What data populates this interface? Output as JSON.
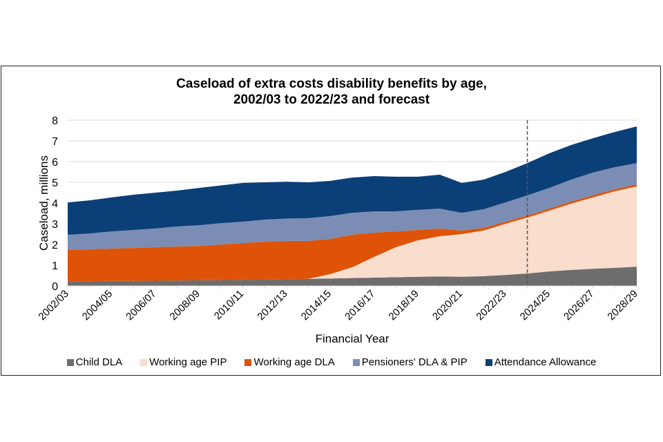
{
  "chart_data": {
    "type": "area",
    "stacked": true,
    "title": "Caseload of extra costs disability benefits by age,",
    "title_line2": "2002/03 to 2022/23 and forecast",
    "xlabel": "Financial Year",
    "ylabel": "Caseload, millions",
    "ylim": [
      0,
      8
    ],
    "yticks": [
      0,
      1,
      2,
      3,
      4,
      5,
      6,
      7,
      8
    ],
    "grid": true,
    "legend_position": "bottom",
    "forecast_marker": {
      "category": "2023/24",
      "style": "dashed"
    },
    "categories": [
      "2002/03",
      "2003/04",
      "2004/05",
      "2005/06",
      "2006/07",
      "2007/08",
      "2008/09",
      "2009/10",
      "2010/11",
      "2011/12",
      "2012/13",
      "2013/14",
      "2014/15",
      "2015/16",
      "2016/17",
      "2017/18",
      "2018/19",
      "2019/20",
      "2020/21",
      "2021/22",
      "2022/23",
      "2023/24",
      "2024/25",
      "2025/26",
      "2026/27",
      "2027/28",
      "2028/29"
    ],
    "tick_labels": [
      "2002/03",
      "2004/05",
      "2006/07",
      "2008/09",
      "2010/11",
      "2012/13",
      "2014/15",
      "2016/17",
      "2018/19",
      "2020/21",
      "2022/23",
      "2024/25",
      "2026/27",
      "2028/29"
    ],
    "series": [
      {
        "name": "Child DLA",
        "color": "#6d6d6d",
        "values": [
          0.22,
          0.23,
          0.24,
          0.24,
          0.25,
          0.26,
          0.27,
          0.28,
          0.29,
          0.3,
          0.32,
          0.34,
          0.36,
          0.38,
          0.4,
          0.42,
          0.44,
          0.46,
          0.44,
          0.47,
          0.53,
          0.6,
          0.7,
          0.77,
          0.83,
          0.87,
          0.93
        ]
      },
      {
        "name": "Working age PIP",
        "color": "#f9ddcd",
        "values": [
          0,
          0,
          0,
          0,
          0,
          0,
          0,
          0,
          0,
          0,
          0,
          0,
          0.21,
          0.52,
          1.0,
          1.45,
          1.76,
          1.94,
          2.06,
          2.2,
          2.47,
          2.7,
          2.93,
          3.2,
          3.44,
          3.7,
          3.87
        ]
      },
      {
        "name": "Working age DLA",
        "color": "#df5309",
        "values": [
          1.51,
          1.54,
          1.56,
          1.59,
          1.62,
          1.64,
          1.66,
          1.72,
          1.78,
          1.83,
          1.85,
          1.83,
          1.7,
          1.57,
          1.17,
          0.76,
          0.5,
          0.37,
          0.17,
          0.13,
          0.1,
          0.1,
          0.1,
          0.1,
          0.1,
          0.1,
          0.1
        ]
      },
      {
        "name": "Pensioners' DLA & PIP",
        "color": "#7b8db4",
        "values": [
          0.74,
          0.76,
          0.83,
          0.87,
          0.9,
          0.97,
          1.0,
          1.03,
          1.03,
          1.07,
          1.08,
          1.1,
          1.1,
          1.06,
          1.03,
          0.97,
          0.97,
          0.96,
          0.86,
          0.9,
          0.93,
          0.97,
          1.0,
          1.06,
          1.1,
          1.06,
          1.03
        ]
      },
      {
        "name": "Attendance Allowance",
        "color": "#0b3f77",
        "values": [
          1.56,
          1.6,
          1.64,
          1.7,
          1.73,
          1.73,
          1.8,
          1.82,
          1.87,
          1.8,
          1.78,
          1.73,
          1.7,
          1.7,
          1.7,
          1.67,
          1.6,
          1.64,
          1.44,
          1.43,
          1.47,
          1.56,
          1.67,
          1.67,
          1.66,
          1.7,
          1.77
        ]
      }
    ]
  }
}
